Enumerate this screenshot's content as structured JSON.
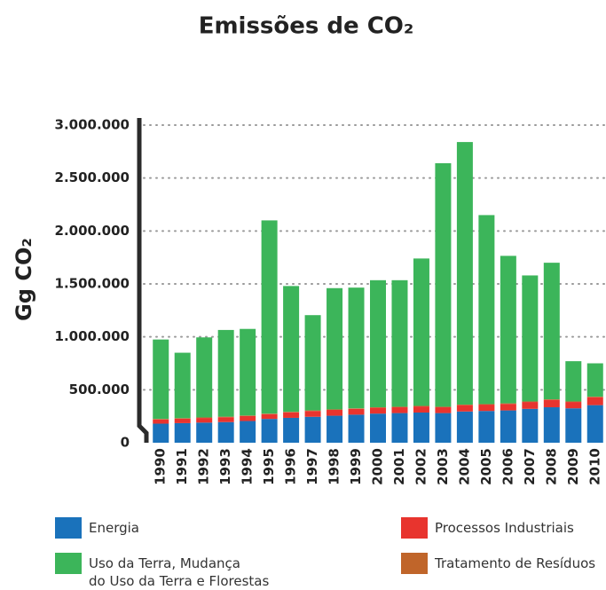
{
  "chart_data": {
    "type": "stacked_bar",
    "title": "Emissões de CO₂",
    "y_label": "Gg CO₂",
    "categories": [
      "1990",
      "1991",
      "1992",
      "1993",
      "1994",
      "1995",
      "1996",
      "1997",
      "1998",
      "1999",
      "2000",
      "2001",
      "2002",
      "2003",
      "2004",
      "2005",
      "2006",
      "2007",
      "2008",
      "2009",
      "2010"
    ],
    "series": [
      {
        "name": "Energia",
        "color": "#1a72bb",
        "values": [
          180000,
          185000,
          190000,
          195000,
          205000,
          225000,
          235000,
          245000,
          255000,
          265000,
          275000,
          280000,
          285000,
          280000,
          295000,
          300000,
          305000,
          320000,
          335000,
          325000,
          355000
        ]
      },
      {
        "name": "Processos Industriais",
        "color": "#e8342e",
        "values": [
          40000,
          42000,
          44000,
          46000,
          47000,
          45000,
          52000,
          55000,
          55000,
          55000,
          55000,
          55000,
          58000,
          55000,
          60000,
          60000,
          62000,
          65000,
          70000,
          60000,
          75000
        ]
      },
      {
        "name": "Tratamento de Resíduos",
        "color": "#c0652a",
        "values": [
          5000,
          5000,
          5000,
          5000,
          5000,
          5000,
          5000,
          5000,
          5000,
          5000,
          5000,
          5000,
          5000,
          5000,
          5000,
          5000,
          5000,
          5000,
          5000,
          5000,
          5000
        ]
      },
      {
        "name": "Uso da Terra, Mudança\ndo Uso da Terra e Florestas",
        "color": "#3cb55a",
        "values": [
          750000,
          618000,
          756000,
          819000,
          818000,
          1825000,
          1188000,
          900000,
          1145000,
          1140000,
          1200000,
          1195000,
          1392000,
          2300000,
          2480000,
          1785000,
          1393000,
          1190000,
          1290000,
          380000,
          315000
        ]
      }
    ],
    "ylim": [
      0,
      3000000
    ],
    "yticks": [
      0,
      {
        "value": 500000,
        "label": "500.000"
      },
      {
        "value": 1000000,
        "label": "1.000.000"
      },
      {
        "value": 1500000,
        "label": "1.500.000"
      },
      {
        "value": 2000000,
        "label": "2.000.000"
      },
      {
        "value": 2500000,
        "label": "2.500.000"
      },
      {
        "value": 3000000,
        "label": "3.000.000"
      }
    ],
    "grid": true
  }
}
